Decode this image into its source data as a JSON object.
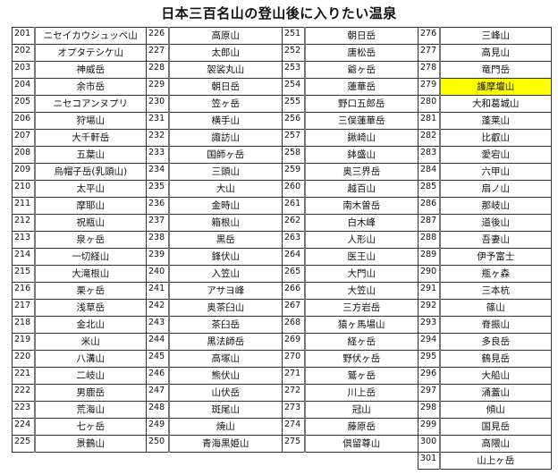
{
  "title": "日本三百名山の登山後に入りたい温泉",
  "highlight_color": "#ffff00",
  "highlighted_number": "279",
  "columns": [
    {
      "numbers": [
        "201",
        "202",
        "203",
        "204",
        "205",
        "206",
        "207",
        "208",
        "209",
        "210",
        "211",
        "212",
        "213",
        "214",
        "215",
        "216",
        "217",
        "218",
        "219",
        "220",
        "221",
        "222",
        "223",
        "224",
        "225"
      ],
      "names": [
        "ニセイカウシュッペ山",
        "オプタテシケ山",
        "神威岳",
        "余市岳",
        "ニセコアンヌプリ",
        "狩場山",
        "大千軒岳",
        "五葉山",
        "烏帽子岳(乳頭山)",
        "太平山",
        "摩耶山",
        "祝瓶山",
        "泉ヶ岳",
        "一切経山",
        "大滝根山",
        "栗ヶ岳",
        "浅草岳",
        "金北山",
        "米山",
        "八溝山",
        "二岐山",
        "男鹿岳",
        "荒海山",
        "七ヶ岳",
        "景鶴山"
      ]
    },
    {
      "numbers": [
        "226",
        "227",
        "228",
        "229",
        "230",
        "231",
        "232",
        "233",
        "234",
        "235",
        "236",
        "237",
        "238",
        "239",
        "240",
        "241",
        "242",
        "243",
        "244",
        "245",
        "246",
        "247",
        "248",
        "249",
        "250"
      ],
      "names": [
        "高原山",
        "太郎山",
        "袈裟丸山",
        "朝日岳",
        "笠ヶ岳",
        "横手山",
        "諏訪山",
        "国師ヶ岳",
        "三頭山",
        "大山",
        "金時山",
        "箱根山",
        "黒岳",
        "鋒伏山",
        "入笠山",
        "アサヨ峰",
        "奥茶臼山",
        "茶臼岳",
        "黒法師岳",
        "高塚山",
        "熊伏山",
        "山伏岳",
        "斑尾山",
        "焼山",
        "青海黒姫山"
      ]
    },
    {
      "numbers": [
        "251",
        "252",
        "253",
        "254",
        "255",
        "256",
        "257",
        "258",
        "259",
        "260",
        "261",
        "262",
        "263",
        "264",
        "265",
        "266",
        "267",
        "268",
        "269",
        "270",
        "271",
        "272",
        "273",
        "274",
        "275"
      ],
      "names": [
        "朝日岳",
        "唐松岳",
        "爺ヶ岳",
        "蓮華岳",
        "野口五郎岳",
        "三俣蓮華岳",
        "鍬崎山",
        "鉢盛山",
        "奥三界岳",
        "越百山",
        "南木曽岳",
        "白木峰",
        "人形山",
        "医王山",
        "大門山",
        "大笠山",
        "三方岩岳",
        "猿ヶ馬場山",
        "経ヶ岳",
        "野伏ヶ岳",
        "鷲ヶ岳",
        "川上岳",
        "冠山",
        "藤原岳",
        "倶留尊山"
      ]
    },
    {
      "numbers": [
        "276",
        "277",
        "278",
        "279",
        "280",
        "281",
        "282",
        "283",
        "284",
        "285",
        "286",
        "287",
        "288",
        "289",
        "290",
        "291",
        "292",
        "293",
        "294",
        "295",
        "296",
        "297",
        "298",
        "299",
        "300",
        "301"
      ],
      "names": [
        "三峰山",
        "高見山",
        "竜門岳",
        "護摩壇山",
        "大和葛城山",
        "蓬莱山",
        "比叡山",
        "愛宕山",
        "六甲山",
        "扇ノ山",
        "那岐山",
        "道後山",
        "吾妻山",
        "伊予富士",
        "瓶ヶ森",
        "三本杭",
        "篠山",
        "脊振山",
        "多良岳",
        "鶴見岳",
        "大船山",
        "涌蓋山",
        "傾山",
        "国見岳",
        "高隈山",
        "山上ヶ岳"
      ]
    }
  ]
}
